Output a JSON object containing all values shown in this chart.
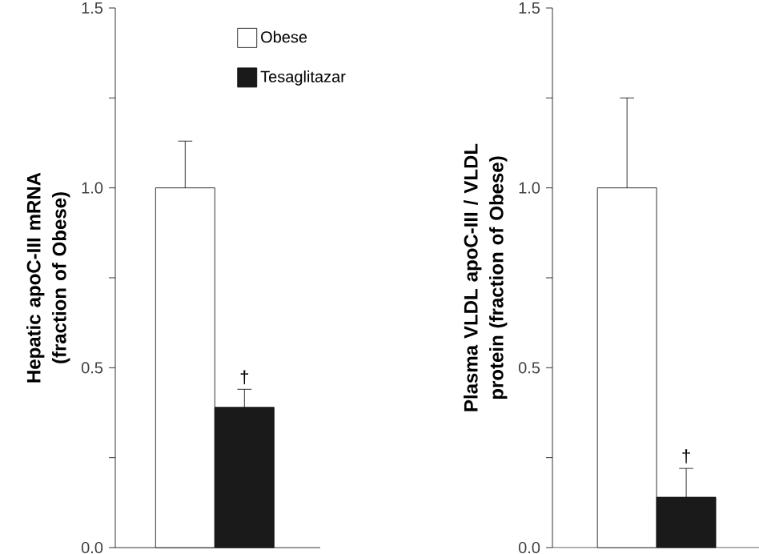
{
  "chart_data": [
    {
      "type": "bar",
      "ylabel": "Hepatic apoC-III mRNA (fraction of Obese)",
      "categories": [
        null,
        null
      ],
      "legend": "top right",
      "series": [
        {
          "name": "Obese",
          "color": "#ffffff",
          "values": [
            1.0,
            null
          ],
          "errors": [
            [
              1.0,
              1.13
            ],
            null
          ]
        },
        {
          "name": "Tesaglitazar",
          "color": "#1a1a1a",
          "values": [
            null,
            0.39
          ],
          "errors": [
            null,
            [
              0.39,
              0.44
            ]
          ]
        }
      ],
      "ylim": [
        0,
        1.5
      ],
      "yticks": [
        {
          "value": 0,
          "label": "0.0"
        },
        {
          "value": 0.25,
          "label": null
        },
        {
          "value": 0.5,
          "label": "0.5"
        },
        {
          "value": 0.75,
          "label": null
        },
        {
          "value": 1.0,
          "label": "1.0"
        },
        {
          "value": 1.25,
          "label": null
        },
        {
          "value": 1.5,
          "label": "1.5"
        }
      ],
      "annotations": [
        "†"
      ]
    },
    {
      "type": "bar",
      "ylabel": "Plasma VLDL apoC-III / VLDL protein (fraction of Obese)",
      "categories": [
        null,
        null
      ],
      "series": [
        {
          "color": "#ffffff",
          "values": [
            1.0,
            null
          ],
          "errors": [
            [
              1.0,
              1.25
            ],
            null
          ]
        },
        {
          "color": "#1a1a1a",
          "values": [
            null,
            0.14
          ],
          "errors": [
            null,
            [
              0.14,
              0.22
            ]
          ]
        }
      ],
      "ylim": [
        0,
        1.5
      ],
      "yticks": [
        {
          "value": 0,
          "label": "0.0"
        },
        {
          "value": 0.25,
          "label": null
        },
        {
          "value": 0.5,
          "label": "0.5"
        },
        {
          "value": 0.75,
          "label": null
        },
        {
          "value": 1.0,
          "label": "1.0"
        },
        {
          "value": 1.25,
          "label": null
        },
        {
          "value": 1.5,
          "label": "1.5"
        }
      ],
      "annotations": [
        "†"
      ]
    }
  ]
}
